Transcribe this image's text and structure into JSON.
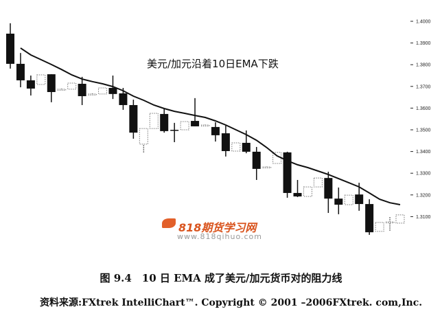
{
  "chart_data": {
    "type": "candlestick",
    "title": "",
    "annotation": "美元/加元沿着10日EMA下跌",
    "ylim": [
      1.3,
      1.407
    ],
    "yticks": [
      "1.4000",
      "1.3900",
      "1.3800",
      "1.3700",
      "1.3600",
      "1.3500",
      "1.3400",
      "1.3300",
      "1.3200",
      "1.3100"
    ],
    "ytick_values": [
      1.4,
      1.39,
      1.38,
      1.37,
      1.36,
      1.35,
      1.34,
      1.33,
      1.32,
      1.31
    ],
    "grid": false,
    "candles": [
      [
        1.3943,
        1.3991,
        1.3782,
        1.3804
      ],
      [
        1.3804,
        1.3854,
        1.3696,
        1.3728
      ],
      [
        1.3728,
        1.375,
        1.3658,
        1.369
      ],
      [
        1.3709,
        1.3753,
        1.3709,
        1.3753
      ],
      [
        1.3756,
        1.3756,
        1.3627,
        1.3674
      ],
      [
        1.3685,
        1.369,
        1.3684,
        1.3687
      ],
      [
        1.3687,
        1.3715,
        1.3687,
        1.3715
      ],
      [
        1.3712,
        1.3744,
        1.3614,
        1.3655
      ],
      [
        1.3663,
        1.3668,
        1.3662,
        1.3665
      ],
      [
        1.3665,
        1.3693,
        1.3665,
        1.3693
      ],
      [
        1.3693,
        1.375,
        1.3642,
        1.3665
      ],
      [
        1.3668,
        1.3693,
        1.3592,
        1.3614
      ],
      [
        1.3614,
        1.3639,
        1.3459,
        1.3487
      ],
      [
        1.3434,
        1.3506,
        1.3392,
        1.3506
      ],
      [
        1.3506,
        1.3576,
        1.3506,
        1.3576
      ],
      [
        1.3573,
        1.3598,
        1.3487,
        1.3494
      ],
      [
        1.35,
        1.3532,
        1.3443,
        1.3498
      ],
      [
        1.35,
        1.3538,
        1.35,
        1.3538
      ],
      [
        1.3541,
        1.3646,
        1.3516,
        1.3516
      ],
      [
        1.352,
        1.3524,
        1.3519,
        1.3522
      ],
      [
        1.3513,
        1.3535,
        1.3446,
        1.3475
      ],
      [
        1.3484,
        1.3519,
        1.3377,
        1.3402
      ],
      [
        1.3402,
        1.344,
        1.3402,
        1.344
      ],
      [
        1.344,
        1.3497,
        1.3392,
        1.3399
      ],
      [
        1.3399,
        1.3421,
        1.3269,
        1.332
      ],
      [
        1.3327,
        1.3331,
        1.3326,
        1.3329
      ],
      [
        1.3345,
        1.3396,
        1.3345,
        1.3396
      ],
      [
        1.3396,
        1.3399,
        1.3187,
        1.3209
      ],
      [
        1.3209,
        1.3269,
        1.319,
        1.3193
      ],
      [
        1.3193,
        1.3237,
        1.3193,
        1.3237
      ],
      [
        1.3237,
        1.3278,
        1.3237,
        1.3278
      ],
      [
        1.3278,
        1.3307,
        1.3117,
        1.3183
      ],
      [
        1.3183,
        1.3234,
        1.3111,
        1.3155
      ],
      [
        1.3155,
        1.3199,
        1.3155,
        1.3199
      ],
      [
        1.3202,
        1.3256,
        1.3127,
        1.3158
      ],
      [
        1.3158,
        1.318,
        1.3016,
        1.3028
      ],
      [
        1.3032,
        1.3073,
        1.3032,
        1.3073
      ],
      [
        1.3076,
        1.3098,
        1.3032,
        1.3076
      ],
      [
        1.307,
        1.3108,
        1.307,
        1.3108
      ]
    ],
    "ema": [
      null,
      1.3877,
      1.3845,
      1.3823,
      1.3801,
      1.3778,
      1.3753,
      1.3734,
      1.3722,
      1.3712,
      1.3699,
      1.368,
      1.3655,
      1.3636,
      1.3614,
      1.3598,
      1.3585,
      1.3576,
      1.3566,
      1.3557,
      1.3541,
      1.3522,
      1.35,
      1.3478,
      1.3452,
      1.3418,
      1.338,
      1.3358,
      1.3339,
      1.3326,
      1.331,
      1.3294,
      1.3275,
      1.3256,
      1.3237,
      1.3209,
      1.318,
      1.3164,
      1.3155
    ],
    "colors": {
      "bear": "#111111",
      "bull": "#777777",
      "ema": "#111111"
    }
  },
  "watermark": {
    "name": "818期货学习网",
    "url": "www.818qihuo.com"
  },
  "caption": "图 9.4　10 日 EMA 成了美元/加元货币对的阻力线",
  "source": "资料来源:FXtrek IntelliChart™. Copyright © 2001 –2006FXtrek. com,Inc."
}
